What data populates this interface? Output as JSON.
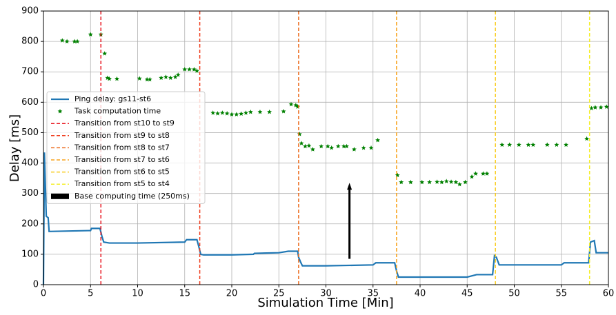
{
  "chart_data": {
    "type": "line",
    "xlabel": "Simulation Time [Min]",
    "ylabel": "Delay [ms]",
    "xlim": [
      0,
      60
    ],
    "xticks": [
      0,
      5,
      10,
      15,
      20,
      25,
      30,
      35,
      40,
      45,
      50,
      55,
      60
    ],
    "ylim": [
      0,
      900
    ],
    "yticks": [
      0,
      100,
      200,
      300,
      400,
      500,
      600,
      700,
      800,
      900
    ],
    "grid": true,
    "legend": "upper left",
    "series": [
      {
        "name": "Ping delay: gs11-st6",
        "color": "#1f77b4",
        "x": [
          0,
          0.1,
          0.3,
          0.5,
          0.6,
          5,
          5.1,
          6,
          6.2,
          6.4,
          7,
          10,
          15,
          15.2,
          16.3,
          16.5,
          16.7,
          17,
          20,
          22.3,
          22.4,
          25,
          26,
          27,
          27.1,
          27.3,
          27.5,
          30,
          35,
          35.3,
          37.3,
          37.5,
          37.7,
          38,
          45,
          46,
          47.7,
          47.9,
          48.1,
          48.4,
          55,
          55.3,
          57.9,
          58.1,
          58.5,
          58.7,
          60
        ],
        "values": [
          0,
          435,
          225,
          220,
          175,
          178,
          185,
          185,
          160,
          140,
          137,
          137,
          140,
          148,
          148,
          125,
          100,
          98,
          98,
          100,
          103,
          105,
          110,
          110,
          90,
          75,
          62,
          62,
          65,
          72,
          72,
          45,
          25,
          25,
          25,
          33,
          33,
          95,
          90,
          65,
          65,
          72,
          72,
          140,
          145,
          105,
          105
        ]
      },
      {
        "name": "Task computation time",
        "color": "#008000",
        "marker": "star",
        "x": [
          2,
          2.5,
          3.3,
          3.6,
          5,
          6.1,
          6.5,
          6.8,
          7,
          7.8,
          10.2,
          11,
          11.3,
          12.5,
          13,
          13.5,
          14,
          14.3,
          15,
          15.5,
          16,
          16.3,
          18,
          18.5,
          19,
          19.5,
          20,
          20.5,
          21,
          21.5,
          22,
          23,
          24,
          25.5,
          26.3,
          26.8,
          27,
          27.2,
          27.4,
          27.8,
          28.2,
          28.6,
          29.5,
          30.2,
          30.6,
          31.3,
          31.9,
          32.2,
          33,
          34,
          34.8,
          35.5,
          37.6,
          38,
          39,
          40.2,
          41,
          41.8,
          42.3,
          42.8,
          43.3,
          43.8,
          44.2,
          44.8,
          45.5,
          45.9,
          46.7,
          47.1,
          48.7,
          49.5,
          50.5,
          51.5,
          52,
          53.5,
          54.5,
          55.5,
          57.7,
          58.2,
          58.6,
          59.2,
          59.8
        ],
        "values": [
          803,
          800,
          800,
          800,
          823,
          823,
          760,
          680,
          677,
          677,
          678,
          675,
          675,
          680,
          683,
          680,
          683,
          690,
          708,
          708,
          708,
          703,
          565,
          563,
          565,
          563,
          560,
          560,
          562,
          565,
          568,
          568,
          568,
          570,
          593,
          590,
          585,
          495,
          465,
          455,
          457,
          445,
          455,
          455,
          450,
          455,
          455,
          455,
          445,
          450,
          450,
          475,
          360,
          337,
          337,
          337,
          337,
          338,
          337,
          340,
          338,
          337,
          330,
          337,
          355,
          365,
          365,
          365,
          460,
          460,
          460,
          460,
          460,
          460,
          460,
          460,
          480,
          580,
          583,
          583,
          585
        ]
      }
    ],
    "vlines": [
      {
        "name": "Transition from st10 to st9",
        "color": "#e8141e",
        "x": 6.1
      },
      {
        "name": "Transition from st9 to st8",
        "color": "#ef3d1e",
        "x": 16.6
      },
      {
        "name": "Transition from st8 to st7",
        "color": "#ec6a1c",
        "x": 27.1
      },
      {
        "name": "Transition from st7 to st6",
        "color": "#f7a21c",
        "x": 37.5
      },
      {
        "name": "Transition from st6 to st5",
        "color": "#f9cc1c",
        "x": 48
      },
      {
        "name": "Transition from st5 to st4",
        "color": "#f4ee2a",
        "x": 58
      }
    ],
    "arrow": {
      "name": "Base computing time (250ms)",
      "color": "#000000",
      "x": 32.5,
      "y0": 85,
      "length": 250
    }
  }
}
